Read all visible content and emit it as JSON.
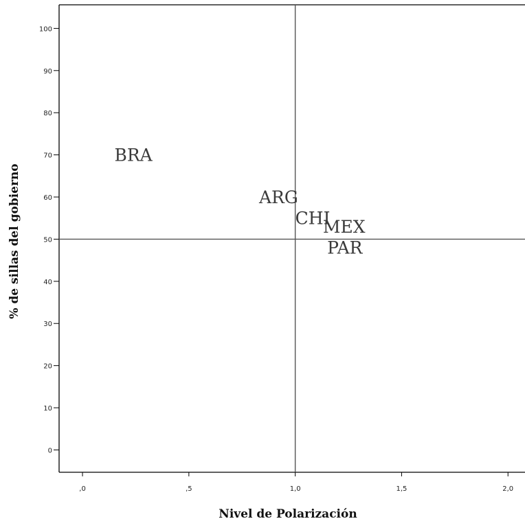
{
  "chart_data": {
    "type": "scatter",
    "title": "",
    "xlabel": "Nivel de Polarización",
    "ylabel": "% de sillas del gobierno",
    "xlim": [
      -0.11,
      2.08
    ],
    "ylim": [
      -5.3,
      105.6
    ],
    "x_ticks": [
      {
        "value": 0.0,
        "label": ",0"
      },
      {
        "value": 0.5,
        "label": ",5"
      },
      {
        "value": 1.0,
        "label": "1,0"
      },
      {
        "value": 1.5,
        "label": "1,5"
      },
      {
        "value": 2.0,
        "label": "2,0"
      }
    ],
    "y_ticks": [
      {
        "value": 0,
        "label": "0"
      },
      {
        "value": 10,
        "label": "10"
      },
      {
        "value": 20,
        "label": "20"
      },
      {
        "value": 30,
        "label": "30"
      },
      {
        "value": 40,
        "label": "40"
      },
      {
        "value": 50,
        "label": "50"
      },
      {
        "value": 60,
        "label": "60"
      },
      {
        "value": 70,
        "label": "70"
      },
      {
        "value": 80,
        "label": "80"
      },
      {
        "value": 90,
        "label": "90"
      },
      {
        "value": 100,
        "label": "100"
      }
    ],
    "reference_lines": {
      "x": 1.0,
      "y": 50
    },
    "points": [
      {
        "label": "BRA",
        "x": 0.15,
        "y": 70
      },
      {
        "label": "ARG",
        "x": 0.83,
        "y": 60
      },
      {
        "label": "CHI",
        "x": 1.0,
        "y": 55
      },
      {
        "label": "MEX",
        "x": 1.13,
        "y": 53
      },
      {
        "label": "PAR",
        "x": 1.15,
        "y": 48
      }
    ],
    "grid": false,
    "legend": "none"
  },
  "colors": {
    "axis": "#000000",
    "reference_line": "#555555",
    "point_label": "#3a3a3a",
    "background": "#ffffff"
  }
}
